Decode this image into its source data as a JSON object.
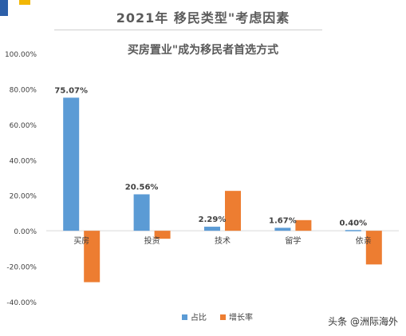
{
  "page": {
    "title_line1": "2021年  移民类型\"考虑因素",
    "title_line2": "买房置业\"成为移民者首选方式",
    "watermark": "头条 @洲际海外"
  },
  "colors": {
    "share": "#5b9bd5",
    "growth": "#ed7d31",
    "corner_blue": "#2c5fa8",
    "corner_yellow": "#f2b705"
  },
  "chart_data": {
    "type": "bar",
    "categories": [
      "买房",
      "投资",
      "技术",
      "留学",
      "依亲"
    ],
    "series": [
      {
        "name": "占比",
        "values": [
          75.07,
          20.56,
          2.29,
          1.67,
          0.4
        ]
      },
      {
        "name": "增长率",
        "values": [
          -29.0,
          -4.5,
          22.5,
          6.0,
          -19.0
        ]
      }
    ],
    "data_labels": [
      "75.07%",
      "20.56%",
      "2.29%",
      "1.67%",
      "0.40%"
    ],
    "y_ticks": [
      "100.00%",
      "80.00%",
      "60.00%",
      "40.00%",
      "20.00%",
      "0.00%",
      "-20.00%",
      "-40.00%"
    ],
    "y_tick_values": [
      100,
      80,
      60,
      40,
      20,
      0,
      -20,
      -40
    ],
    "ylim": [
      -40,
      100
    ],
    "legend_position": "bottom",
    "grid": false
  }
}
